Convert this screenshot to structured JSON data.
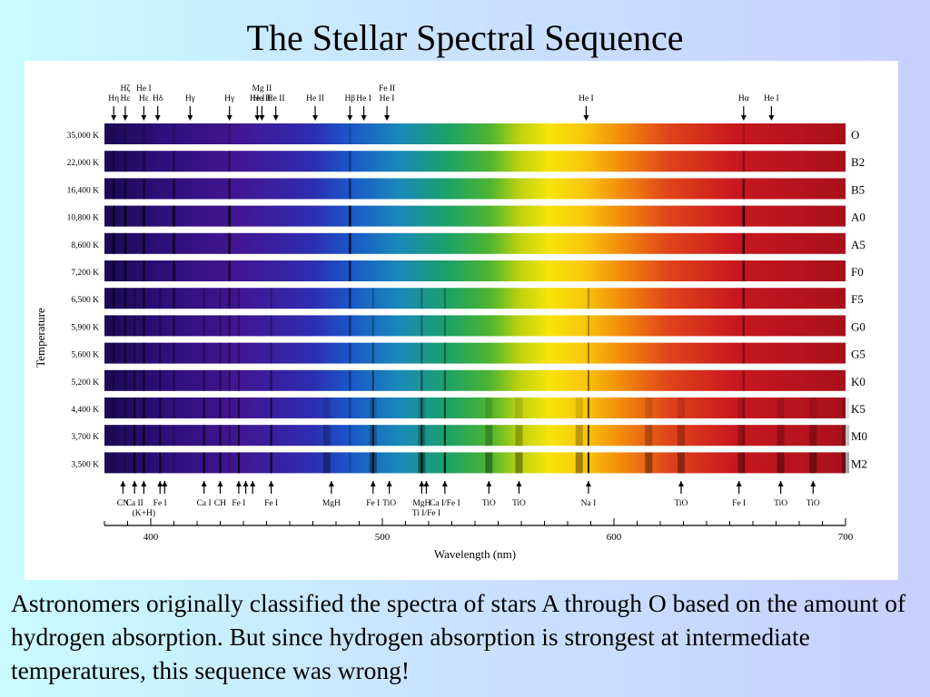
{
  "title": "The Stellar Spectral Sequence",
  "figure": {
    "wavelength_axis": {
      "label": "Wavelength (nm)",
      "min": 380,
      "max": 700,
      "ticks": [
        400,
        500,
        600,
        700
      ]
    },
    "temperature_axis_label": "Temperature",
    "rows": [
      {
        "temperature": "35,000 K",
        "type": "O",
        "strength": 0.15,
        "molec": 0
      },
      {
        "temperature": "22,000 K",
        "type": "B2",
        "strength": 0.3,
        "molec": 0
      },
      {
        "temperature": "16,400 K",
        "type": "B5",
        "strength": 0.5,
        "molec": 0
      },
      {
        "temperature": "10,800 K",
        "type": "A0",
        "strength": 0.9,
        "molec": 0
      },
      {
        "temperature": "8,600 K",
        "type": "A5",
        "strength": 0.75,
        "molec": 0
      },
      {
        "temperature": "7,200 K",
        "type": "F0",
        "strength": 0.6,
        "molec": 0
      },
      {
        "temperature": "6,500 K",
        "type": "F5",
        "strength": 0.5,
        "molec": 0.05
      },
      {
        "temperature": "5,900 K",
        "type": "G0",
        "strength": 0.4,
        "molec": 0.1
      },
      {
        "temperature": "5,600 K",
        "type": "G5",
        "strength": 0.35,
        "molec": 0.2
      },
      {
        "temperature": "5,200 K",
        "type": "K0",
        "strength": 0.3,
        "molec": 0.35
      },
      {
        "temperature": "4,400 K",
        "type": "K5",
        "strength": 0.25,
        "molec": 0.6
      },
      {
        "temperature": "3,700 K",
        "type": "M0",
        "strength": 0.2,
        "molec": 0.8
      },
      {
        "temperature": "3,500 K",
        "type": "M2",
        "strength": 0.15,
        "molec": 1.0
      }
    ],
    "top_lines": [
      {
        "wl": 384,
        "labels": [
          "Hη"
        ]
      },
      {
        "wl": 389,
        "labels": [
          "Hζ",
          "Hε"
        ]
      },
      {
        "wl": 397,
        "labels": [
          "He I",
          "Hε"
        ]
      },
      {
        "wl": 403,
        "labels": [
          "Hδ"
        ]
      },
      {
        "wl": 417,
        "labels": [
          "Hγ"
        ]
      },
      {
        "wl": 434,
        "labels": [
          "Hγ"
        ]
      },
      {
        "wl": 446,
        "labels": [
          "He I"
        ]
      },
      {
        "wl": 448,
        "labels": [
          "Mg II",
          "He II"
        ]
      },
      {
        "wl": 454,
        "labels": [
          "He II"
        ]
      },
      {
        "wl": 471,
        "labels": [
          "He II"
        ]
      },
      {
        "wl": 486,
        "labels": [
          "Hβ"
        ]
      },
      {
        "wl": 492,
        "labels": [
          "He I"
        ]
      },
      {
        "wl": 502,
        "labels": [
          "Fe II",
          "He I"
        ]
      },
      {
        "wl": 588,
        "labels": [
          "He I"
        ]
      },
      {
        "wl": 656,
        "labels": [
          "Hα"
        ]
      },
      {
        "wl": 668,
        "labels": [
          "He I"
        ]
      }
    ],
    "bottom_lines": [
      {
        "wl": 388,
        "label": "CN"
      },
      {
        "wl": 393,
        "label": "Ca II"
      },
      {
        "wl": 397,
        "label": "(K+H)"
      },
      {
        "wl": 404,
        "label": "Fe I"
      },
      {
        "wl": 406,
        "label": ""
      },
      {
        "wl": 423,
        "label": "Ca I"
      },
      {
        "wl": 430,
        "label": "CH"
      },
      {
        "wl": 438,
        "label": "Fe I"
      },
      {
        "wl": 441,
        "label": ""
      },
      {
        "wl": 444,
        "label": ""
      },
      {
        "wl": 452,
        "label": "Fe I"
      },
      {
        "wl": 478,
        "label": "MgH"
      },
      {
        "wl": 496,
        "label": "Fe I"
      },
      {
        "wl": 503,
        "label": "TiO"
      },
      {
        "wl": 517,
        "label": "MgH"
      },
      {
        "wl": 519,
        "label": "Ti I/Fe I"
      },
      {
        "wl": 527,
        "label": "Ca I/Fe I"
      },
      {
        "wl": 546,
        "label": "TiO"
      },
      {
        "wl": 559,
        "label": "TiO"
      },
      {
        "wl": 589,
        "label": "Na I"
      },
      {
        "wl": 629,
        "label": "TiO"
      },
      {
        "wl": 654,
        "label": "Fe I"
      },
      {
        "wl": 672,
        "label": "TiO"
      },
      {
        "wl": 686,
        "label": "TiO"
      }
    ]
  },
  "caption": "Astronomers originally classified the spectra of stars A through O based on the amount of hydrogen absorption.  But since hydrogen absorption is strongest at intermediate temperatures, this sequence was wrong!"
}
